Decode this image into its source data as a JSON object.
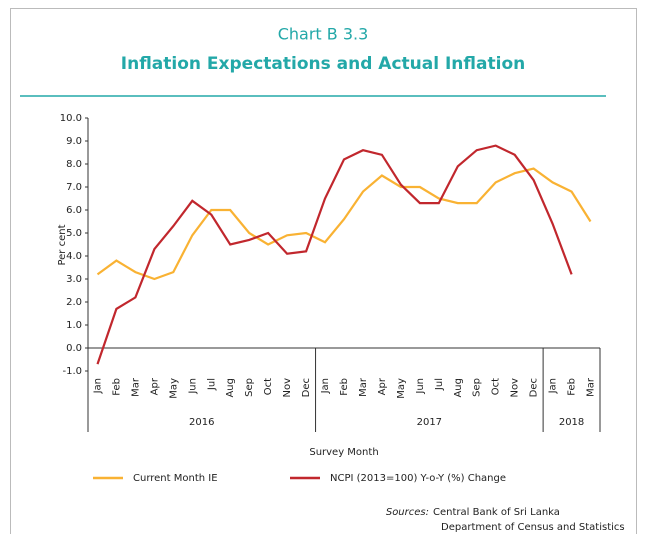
{
  "chart_data": {
    "type": "line",
    "title": "Chart B 3.3",
    "subtitle": "Inflation Expectations and Actual Inflation",
    "y_label": "Per cent",
    "x_label": "Survey Month",
    "categories": [
      "Jan",
      "Feb",
      "Mar",
      "Apr",
      "May",
      "Jun",
      "Jul",
      "Aug",
      "Sep",
      "Oct",
      "Nov",
      "Dec",
      "Jan",
      "Feb",
      "Mar",
      "Apr",
      "May",
      "Jun",
      "Jul",
      "Aug",
      "Sep",
      "Oct",
      "Nov",
      "Dec",
      "Jan",
      "Feb",
      "Mar"
    ],
    "category_groups": [
      "2016",
      "2017",
      "2018"
    ],
    "series": [
      {
        "name": "Current Month IE",
        "color": "#f9b233",
        "values": [
          3.2,
          3.8,
          3.3,
          3.0,
          3.3,
          4.9,
          6.0,
          6.0,
          5.0,
          4.5,
          4.9,
          5.0,
          4.6,
          5.6,
          6.8,
          7.5,
          7.0,
          7.0,
          6.5,
          6.3,
          6.3,
          7.2,
          7.6,
          7.8,
          7.2,
          6.8,
          5.5
        ]
      },
      {
        "name": "NCPI (2013=100) Y-o-Y  (%) Change",
        "color": "#c1272d",
        "values": [
          -0.7,
          1.7,
          2.2,
          4.3,
          5.3,
          6.4,
          5.8,
          4.5,
          4.7,
          5.0,
          4.1,
          4.2,
          6.5,
          8.2,
          8.6,
          8.4,
          7.1,
          6.3,
          6.3,
          7.9,
          8.6,
          8.8,
          8.4,
          7.3,
          5.4,
          3.2,
          null
        ]
      }
    ],
    "ylim": [
      -1,
      10
    ],
    "yticks": [
      {
        "value": -1,
        "label": "-1.0"
      },
      {
        "value": 0,
        "label": "0.0"
      },
      {
        "value": 1,
        "label": "1.0"
      },
      {
        "value": 2,
        "label": "2.0"
      },
      {
        "value": 3,
        "label": "3.0"
      },
      {
        "value": 4,
        "label": "4.0"
      },
      {
        "value": 5,
        "label": "5.0"
      },
      {
        "value": 6,
        "label": "6.0"
      },
      {
        "value": 7,
        "label": "7.0"
      },
      {
        "value": 8,
        "label": "8.0"
      },
      {
        "value": 9,
        "label": "9.0"
      },
      {
        "value": 10,
        "label": "10.0"
      }
    ],
    "sources_label": "Sources:",
    "sources": [
      "Central Bank of Sri Lanka",
      "Department of Census and Statistics"
    ]
  }
}
